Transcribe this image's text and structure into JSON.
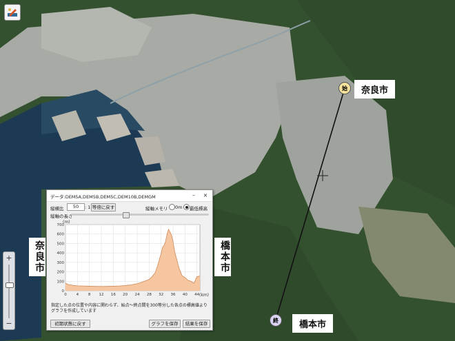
{
  "map": {
    "home_icon": "home-icon",
    "zoom": {
      "plus": "+",
      "minus": "−",
      "level": 0.45
    },
    "route_markers": {
      "start": "始",
      "end": "終"
    },
    "labels": {
      "nara_top": "奈良市",
      "hashimoto_bottom": "橋本市",
      "nara_side": "奈良市",
      "hashimoto_side": "橋本市"
    }
  },
  "dialog": {
    "title": "データ:DEM5A,DEM5B,DEM5C,DEM10B,DEMGM",
    "controls": {
      "vertical_ratio_label": "縦横比",
      "vertical_ratio_value": "50",
      "ratio_suffix": ": 1",
      "reset_ratio_button": "等倍に戻す",
      "scale_label": "縦軸メモリ",
      "option_zero": "0m",
      "option_min": "最低標高",
      "selected_option": "最低標高",
      "length_label": "縦軸の長さ"
    },
    "note": "指定した点の位置や内容に関わらず、始点〜終点間を300等分した各点の標高値よりグラフを作成しています",
    "buttons": {
      "reset": "初期状態に戻す",
      "save_graph": "グラフを保存",
      "save_data": "結果を保存"
    }
  },
  "chart_data": {
    "type": "area",
    "ylabel": "(m)",
    "xlabel": "(km)",
    "xlim": [
      0,
      45
    ],
    "ylim": [
      0,
      700
    ],
    "xticks": [
      0,
      4,
      8,
      12,
      16,
      20,
      24,
      28,
      32,
      36,
      40,
      44
    ],
    "yticks": [
      0,
      100,
      200,
      300,
      400,
      500,
      600,
      700
    ],
    "grid": true,
    "fill_color": "#f5c6a0",
    "line_color": "#d08a5a",
    "points": [
      [
        0,
        80
      ],
      [
        1,
        65
      ],
      [
        2,
        60
      ],
      [
        3,
        55
      ],
      [
        4,
        52
      ],
      [
        6,
        50
      ],
      [
        8,
        48
      ],
      [
        10,
        46
      ],
      [
        12,
        45
      ],
      [
        14,
        46
      ],
      [
        16,
        48
      ],
      [
        18,
        50
      ],
      [
        20,
        55
      ],
      [
        22,
        62
      ],
      [
        24,
        75
      ],
      [
        26,
        95
      ],
      [
        28,
        120
      ],
      [
        29,
        150
      ],
      [
        30,
        190
      ],
      [
        30.8,
        260
      ],
      [
        31.5,
        340
      ],
      [
        32,
        390
      ],
      [
        32.5,
        460
      ],
      [
        33,
        480
      ],
      [
        33.5,
        520
      ],
      [
        34,
        600
      ],
      [
        34.5,
        650
      ],
      [
        35,
        620
      ],
      [
        35.5,
        590
      ],
      [
        36,
        520
      ],
      [
        36.5,
        420
      ],
      [
        37,
        360
      ],
      [
        37.5,
        300
      ],
      [
        38,
        240
      ],
      [
        38.5,
        200
      ],
      [
        39,
        160
      ],
      [
        40,
        140
      ],
      [
        41,
        110
      ],
      [
        42,
        100
      ],
      [
        43,
        80
      ],
      [
        44,
        150
      ],
      [
        45,
        155
      ]
    ]
  }
}
